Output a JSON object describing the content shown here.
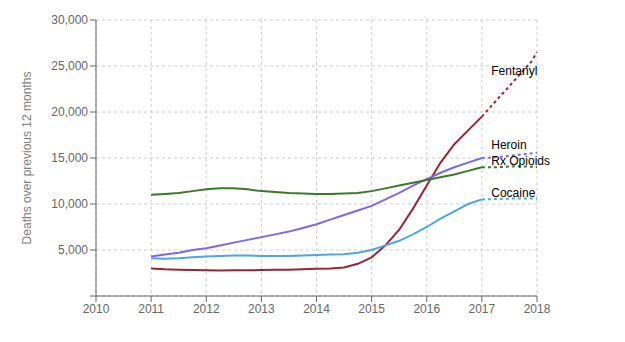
{
  "chart_data": {
    "type": "line",
    "y_label": "Deaths over previous 12 months",
    "xlim": [
      2010,
      2018
    ],
    "ylim": [
      0,
      30000
    ],
    "xticks": [
      2010,
      2011,
      2012,
      2013,
      2014,
      2015,
      2016,
      2017,
      2018
    ],
    "yticks": [
      {
        "value": 0,
        "label": null
      },
      {
        "value": 5000,
        "label": "5,000"
      },
      {
        "value": 10000,
        "label": "10,000"
      },
      {
        "value": 15000,
        "label": "15,000"
      },
      {
        "value": 20000,
        "label": "20,000"
      },
      {
        "value": 25000,
        "label": "25,000"
      },
      {
        "value": 30000,
        "label": "30,000"
      }
    ],
    "grid": true,
    "series": [
      {
        "color": "#9B2335",
        "line_style": "solid",
        "x": [
          2011,
          2011.25,
          2011.5,
          2011.75,
          2012,
          2012.25,
          2012.5,
          2012.75,
          2013,
          2013.25,
          2013.5,
          2013.75,
          2014,
          2014.25,
          2014.5,
          2014.75,
          2015,
          2015.25,
          2015.5,
          2015.75,
          2016,
          2016.25,
          2016.5,
          2016.75,
          2017
        ],
        "values": [
          3000,
          2900,
          2850,
          2820,
          2800,
          2780,
          2790,
          2800,
          2820,
          2840,
          2860,
          2900,
          2950,
          3000,
          3100,
          3500,
          4200,
          5500,
          7200,
          9500,
          12000,
          14500,
          16500,
          18000,
          19500
        ]
      },
      {
        "color": "#9B2335",
        "line_style": "dotted",
        "x": [
          2017,
          2017.3,
          2017.6,
          2017.9,
          2018
        ],
        "values": [
          19500,
          21500,
          23500,
          25500,
          26500
        ]
      },
      {
        "color": "#7B68EE",
        "line_style": "solid",
        "x": [
          2011,
          2011.25,
          2011.5,
          2011.75,
          2012,
          2012.25,
          2012.5,
          2012.75,
          2013,
          2013.25,
          2013.5,
          2013.75,
          2014,
          2014.25,
          2014.5,
          2014.75,
          2015,
          2015.25,
          2015.5,
          2015.75,
          2016,
          2016.25,
          2016.5,
          2016.75,
          2017
        ],
        "values": [
          4300,
          4500,
          4700,
          5000,
          5200,
          5500,
          5800,
          6100,
          6400,
          6700,
          7000,
          7400,
          7800,
          8300,
          8800,
          9300,
          9800,
          10500,
          11200,
          12000,
          12700,
          13400,
          14000,
          14500,
          15000
        ]
      },
      {
        "color": "#7B68EE",
        "line_style": "dotted",
        "x": [
          2017,
          2017.3,
          2017.6,
          2017.9,
          2018
        ],
        "values": [
          15000,
          15100,
          15300,
          15500,
          15600
        ]
      },
      {
        "color": "#3A7A2A",
        "line_style": "solid",
        "x": [
          2011,
          2011.25,
          2011.5,
          2011.75,
          2012,
          2012.25,
          2012.5,
          2012.75,
          2013,
          2013.25,
          2013.5,
          2013.75,
          2014,
          2014.25,
          2014.5,
          2014.75,
          2015,
          2015.25,
          2015.5,
          2015.75,
          2016,
          2016.25,
          2016.5,
          2016.75,
          2017
        ],
        "values": [
          11000,
          11100,
          11200,
          11400,
          11600,
          11700,
          11700,
          11600,
          11400,
          11300,
          11200,
          11150,
          11100,
          11100,
          11150,
          11200,
          11400,
          11700,
          12000,
          12300,
          12600,
          12900,
          13200,
          13600,
          14000
        ]
      },
      {
        "color": "#3A7A2A",
        "line_style": "dotted",
        "x": [
          2017,
          2017.3,
          2017.6,
          2017.9,
          2018
        ],
        "values": [
          14000,
          14000,
          14100,
          14050,
          14000
        ]
      },
      {
        "color": "#4DA6E8",
        "line_style": "solid",
        "x": [
          2011,
          2011.25,
          2011.5,
          2011.75,
          2012,
          2012.25,
          2012.5,
          2012.75,
          2013,
          2013.25,
          2013.5,
          2013.75,
          2014,
          2014.25,
          2014.5,
          2014.75,
          2015,
          2015.25,
          2015.5,
          2015.75,
          2016,
          2016.25,
          2016.5,
          2016.75,
          2017
        ],
        "values": [
          4100,
          4050,
          4100,
          4200,
          4300,
          4350,
          4400,
          4400,
          4350,
          4350,
          4350,
          4400,
          4450,
          4500,
          4550,
          4700,
          5000,
          5500,
          6000,
          6700,
          7500,
          8400,
          9200,
          10000,
          10500
        ]
      },
      {
        "color": "#4DA6E8",
        "line_style": "dotted",
        "x": [
          2017,
          2017.3,
          2017.6,
          2017.9,
          2018
        ],
        "values": [
          10500,
          10550,
          10600,
          10600,
          10600
        ]
      }
    ],
    "annotations": [
      {
        "text": "Fentanyl",
        "x": 2017.08,
        "y": 24500
      },
      {
        "text": "Heroin",
        "x": 2017.08,
        "y": 16400
      },
      {
        "text": "Rx Opioids",
        "x": 2017.08,
        "y": 14700
      },
      {
        "text": "Cocaine",
        "x": 2017.08,
        "y": 11200
      }
    ]
  }
}
